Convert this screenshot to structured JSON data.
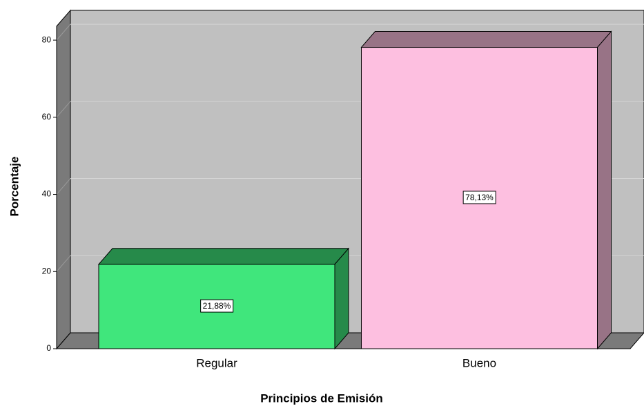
{
  "chart_data": {
    "type": "bar3d",
    "x_label": "Principios de Emisión",
    "y_label": "Porcentaje",
    "categories": [
      "Regular",
      "Bueno"
    ],
    "values": [
      21.88,
      78.13
    ],
    "value_labels": [
      "21,88%",
      "78,13%"
    ],
    "colors": [
      "#40e67c",
      "#fdbfe0"
    ],
    "ylim": [
      0,
      83.6
    ],
    "yticks": [
      0,
      20,
      40,
      60,
      80
    ],
    "grid": true
  }
}
